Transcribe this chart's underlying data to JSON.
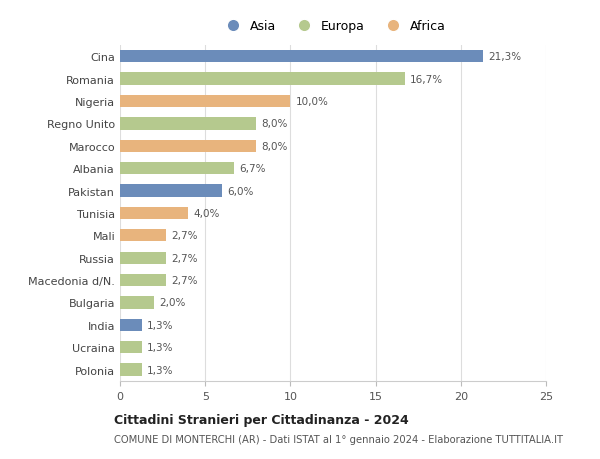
{
  "countries": [
    "Cina",
    "Romania",
    "Nigeria",
    "Regno Unito",
    "Marocco",
    "Albania",
    "Pakistan",
    "Tunisia",
    "Mali",
    "Russia",
    "Macedonia d/N.",
    "Bulgaria",
    "India",
    "Ucraina",
    "Polonia"
  ],
  "values": [
    21.3,
    16.7,
    10.0,
    8.0,
    8.0,
    6.7,
    6.0,
    4.0,
    2.7,
    2.7,
    2.7,
    2.0,
    1.3,
    1.3,
    1.3
  ],
  "labels": [
    "21,3%",
    "16,7%",
    "10,0%",
    "8,0%",
    "8,0%",
    "6,7%",
    "6,0%",
    "4,0%",
    "2,7%",
    "2,7%",
    "2,7%",
    "2,0%",
    "1,3%",
    "1,3%",
    "1,3%"
  ],
  "continents": [
    "Asia",
    "Europa",
    "Africa",
    "Europa",
    "Africa",
    "Europa",
    "Asia",
    "Africa",
    "Africa",
    "Europa",
    "Europa",
    "Europa",
    "Asia",
    "Europa",
    "Europa"
  ],
  "colors": {
    "Asia": "#6b8cba",
    "Europa": "#b5c98e",
    "Africa": "#e8b47d"
  },
  "legend_labels": [
    "Asia",
    "Europa",
    "Africa"
  ],
  "xlim": [
    0,
    25
  ],
  "xticks": [
    0,
    5,
    10,
    15,
    20,
    25
  ],
  "title": "Cittadini Stranieri per Cittadinanza - 2024",
  "subtitle": "COMUNE DI MONTERCHI (AR) - Dati ISTAT al 1° gennaio 2024 - Elaborazione TUTTITALIA.IT",
  "background_color": "#ffffff",
  "grid_color": "#dddddd",
  "bar_height": 0.55
}
